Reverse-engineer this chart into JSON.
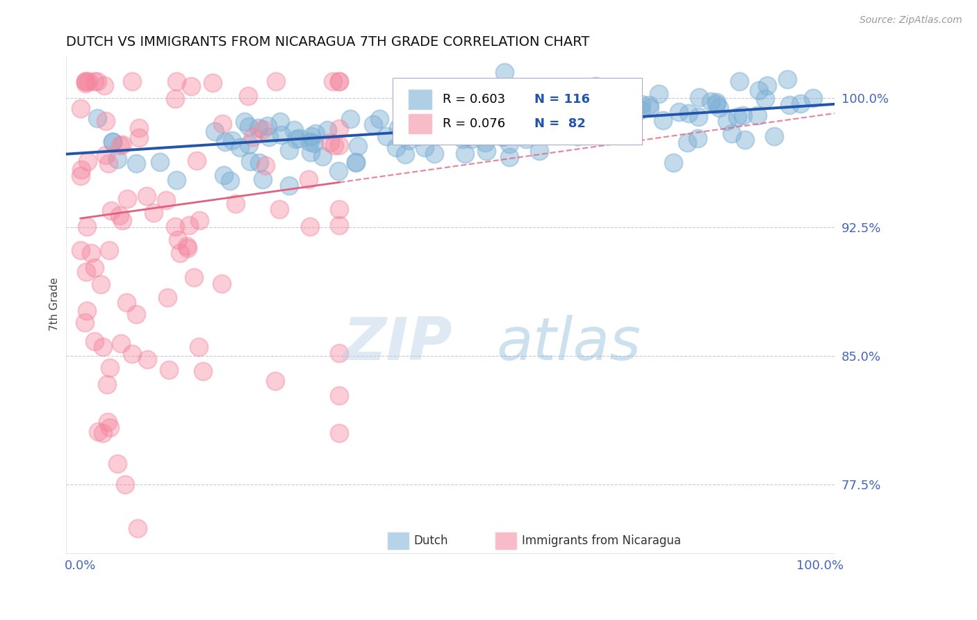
{
  "title": "DUTCH VS IMMIGRANTS FROM NICARAGUA 7TH GRADE CORRELATION CHART",
  "source": "Source: ZipAtlas.com",
  "ylabel": "7th Grade",
  "xlim": [
    -0.02,
    1.02
  ],
  "ylim": [
    0.735,
    1.025
  ],
  "yticks": [
    0.775,
    0.85,
    0.925,
    1.0
  ],
  "ytick_labels": [
    "77.5%",
    "85.0%",
    "92.5%",
    "100.0%"
  ],
  "xticks": [
    0.0,
    1.0
  ],
  "xtick_labels": [
    "0.0%",
    "100.0%"
  ],
  "blue_color": "#7BAFD4",
  "pink_color": "#F4849C",
  "blue_line_color": "#2255AA",
  "pink_line_color": "#E06080",
  "legend_R_blue": "R = 0.603",
  "legend_N_blue": "N = 116",
  "legend_R_pink": "R = 0.076",
  "legend_N_pink": "N =  82",
  "legend_label_blue": "Dutch",
  "legend_label_pink": "Immigrants from Nicaragua",
  "watermark_zip": "ZIP",
  "watermark_atlas": "atlas",
  "blue_N": 116,
  "pink_N": 82,
  "blue_intercept": 0.968,
  "blue_slope": 0.028,
  "pink_intercept": 0.93,
  "pink_slope": 0.06,
  "tick_color": "#4466BB",
  "grid_color": "#C8C8D8",
  "title_fontsize": 14,
  "tick_fontsize": 13
}
